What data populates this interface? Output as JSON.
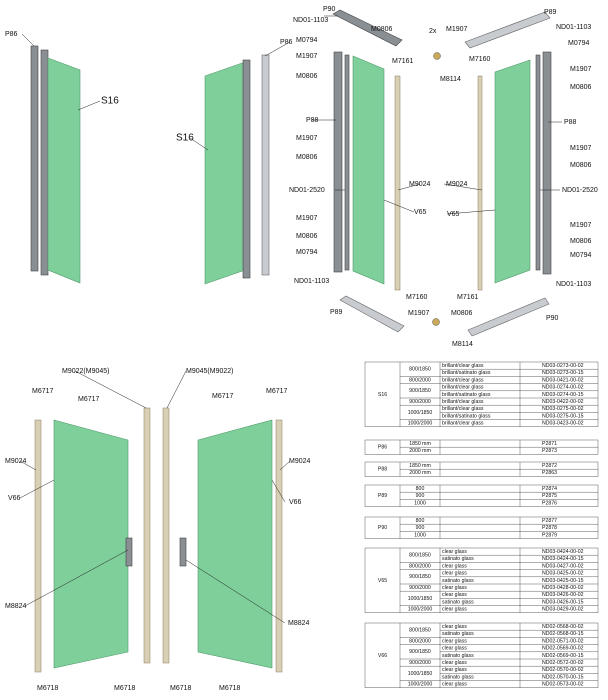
{
  "top_left": {
    "labels": [
      "P86",
      "S16",
      "S16",
      "P86"
    ]
  },
  "top_right": {
    "labels": [
      "P90",
      "ND01-1103",
      "M0806",
      "2x",
      "M1907",
      "P89",
      "ND01-1103",
      "M0794",
      "M0794",
      "M1907",
      "M0806",
      "M7161",
      "M7160",
      "M8114",
      "M1907",
      "M0806",
      "P88",
      "P88",
      "M1907",
      "M0806",
      "M1907",
      "M0806",
      "ND01-2520",
      "M9024",
      "M9024",
      "ND01-2520",
      "V65",
      "V65",
      "M1907",
      "M0806",
      "M1907",
      "M0806",
      "M0794",
      "M0794",
      "ND01-1103",
      "ND01-1103",
      "M7160",
      "M7161",
      "P89",
      "M1907",
      "M0806",
      "P90",
      "M8114"
    ]
  },
  "bottom_left": {
    "labels": [
      "M9022(M9045)",
      "M9045(M9022)",
      "M6717",
      "M6717",
      "M6717",
      "M6717",
      "M9024",
      "M9024",
      "V66",
      "V66",
      "M8824",
      "M8824",
      "M6718",
      "M6718",
      "M6718",
      "M6718"
    ]
  },
  "tables": [
    {
      "part": "S16",
      "groups": [
        {
          "size": "800/1850",
          "items": [
            {
              "desc": "brillant/clear glass",
              "code": "ND03-0273-00-02"
            },
            {
              "desc": "brillant/satinato glass",
              "code": "ND03-0273-00-15"
            }
          ]
        },
        {
          "size": "800/2000",
          "items": [
            {
              "desc": "brillant/clear glass",
              "code": "ND03-0421-00-02"
            }
          ]
        },
        {
          "size": "900/1850",
          "items": [
            {
              "desc": "brillant/clear glass",
              "code": "ND03-0274-00-02"
            },
            {
              "desc": "brillant/satinato glass",
              "code": "ND03-0274-00-15"
            }
          ]
        },
        {
          "size": "900/2000",
          "items": [
            {
              "desc": "brillant/clear glass",
              "code": "ND03-0422-00-02"
            }
          ]
        },
        {
          "size": "1000/1850",
          "items": [
            {
              "desc": "brillant/clear glass",
              "code": "ND03-0275-00-02"
            },
            {
              "desc": "brillant/satinato glass",
              "code": "ND03-0275-00-15"
            }
          ]
        },
        {
          "size": "1000/2000",
          "items": [
            {
              "desc": "brillant/clear glass",
              "code": "ND03-0423-00-02"
            }
          ]
        }
      ]
    },
    {
      "part": "P86",
      "groups": [
        {
          "size": "1850 mm",
          "items": [
            {
              "code": "P2871"
            }
          ]
        },
        {
          "size": "2000 mm",
          "items": [
            {
              "code": "P2873"
            }
          ]
        }
      ]
    },
    {
      "part": "P88",
      "groups": [
        {
          "size": "1850 mm",
          "items": [
            {
              "code": "P2872"
            }
          ]
        },
        {
          "size": "2000 mm",
          "items": [
            {
              "code": "P2863"
            }
          ]
        }
      ]
    },
    {
      "part": "P89",
      "groups": [
        {
          "size": "800",
          "items": [
            {
              "code": "P2874"
            }
          ]
        },
        {
          "size": "900",
          "items": [
            {
              "code": "P2875"
            }
          ]
        },
        {
          "size": "1000",
          "items": [
            {
              "code": "P2876"
            }
          ]
        }
      ]
    },
    {
      "part": "P90",
      "groups": [
        {
          "size": "800",
          "items": [
            {
              "code": "P2877"
            }
          ]
        },
        {
          "size": "900",
          "items": [
            {
              "code": "P2878"
            }
          ]
        },
        {
          "size": "1000",
          "items": [
            {
              "code": "P2879"
            }
          ]
        }
      ]
    },
    {
      "part": "V65",
      "groups": [
        {
          "size": "800/1850",
          "items": [
            {
              "desc": "clear glass",
              "code": "ND03-0424-00-02"
            },
            {
              "desc": "satinato glass",
              "code": "ND03-0424-00-15"
            }
          ]
        },
        {
          "size": "800/2000",
          "items": [
            {
              "desc": "clear glass",
              "code": "ND03-0427-00-02"
            }
          ]
        },
        {
          "size": "900/1850",
          "items": [
            {
              "desc": "clear glass",
              "code": "ND03-0425-00-02"
            },
            {
              "desc": "satinato glass",
              "code": "ND03-0425-00-15"
            }
          ]
        },
        {
          "size": "900/2000",
          "items": [
            {
              "desc": "clear glass",
              "code": "ND03-0428-00-02"
            }
          ]
        },
        {
          "size": "1000/1850",
          "items": [
            {
              "desc": "clear glass",
              "code": "ND03-0426-00-02"
            },
            {
              "desc": "satinato glass",
              "code": "ND03-0426-00-15"
            }
          ]
        },
        {
          "size": "1000/2000",
          "items": [
            {
              "desc": "clear glass",
              "code": "ND03-0429-00-02"
            }
          ]
        }
      ]
    },
    {
      "part": "V66",
      "groups": [
        {
          "size": "800/1850",
          "items": [
            {
              "desc": "clear glass",
              "code": "ND02-0568-00-02"
            },
            {
              "desc": "satinato glass",
              "code": "ND02-0568-00-15"
            }
          ]
        },
        {
          "size": "800/2000",
          "items": [
            {
              "desc": "clear glass",
              "code": "ND02-0571-00-02"
            }
          ]
        },
        {
          "size": "900/1850",
          "items": [
            {
              "desc": "clear glass",
              "code": "ND02-0569-00-02"
            },
            {
              "desc": "satinato glass",
              "code": "ND02-0569-00-15"
            }
          ]
        },
        {
          "size": "900/2000",
          "items": [
            {
              "desc": "clear glass",
              "code": "ND02-0572-00-02"
            }
          ]
        },
        {
          "size": "1000/1850",
          "items": [
            {
              "desc": "clear glass",
              "code": "ND02-0570-00-02"
            },
            {
              "desc": "satinato glass",
              "code": "ND02-0570-00-15"
            }
          ]
        },
        {
          "size": "1000/2000",
          "items": [
            {
              "desc": "clear glass",
              "code": "ND02-0573-00-02"
            }
          ]
        }
      ]
    }
  ]
}
